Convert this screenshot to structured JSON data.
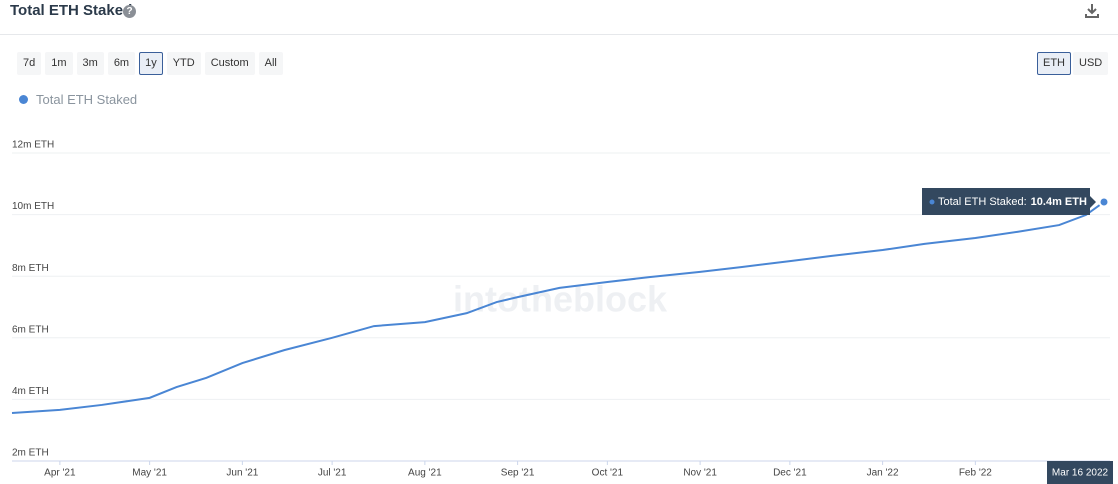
{
  "header": {
    "title": "Total ETH Staked"
  },
  "range_buttons": [
    "7d",
    "1m",
    "3m",
    "6m",
    "1y",
    "YTD",
    "Custom",
    "All"
  ],
  "selected_range": "1y",
  "unit_buttons": [
    "ETH",
    "USD"
  ],
  "selected_unit": "ETH",
  "watermark": "intotheblock",
  "chart_data": {
    "type": "line",
    "series": [
      {
        "name": "Total ETH Staked",
        "color": "#4a86d4",
        "values": [
          3.56,
          3.66,
          3.82,
          4.05,
          4.4,
          4.7,
          5.18,
          5.6,
          6.0,
          6.38,
          6.51,
          6.8,
          7.16,
          7.32,
          7.62,
          7.81,
          7.97,
          8.14,
          8.3,
          8.49,
          8.66,
          8.85,
          9.05,
          9.24,
          9.44,
          9.66,
          9.99,
          10.41
        ]
      }
    ],
    "x": [
      "2021-03-16",
      "2021-04-01",
      "2021-04-15",
      "2021-05-01",
      "2021-05-10",
      "2021-05-20",
      "2021-06-01",
      "2021-06-15",
      "2021-07-01",
      "2021-07-15",
      "2021-08-01",
      "2021-08-15",
      "2021-08-25",
      "2021-09-01",
      "2021-09-15",
      "2021-10-01",
      "2021-10-15",
      "2021-11-01",
      "2021-11-15",
      "2021-12-01",
      "2021-12-15",
      "2022-01-01",
      "2022-01-15",
      "2022-02-01",
      "2022-02-15",
      "2022-03-01",
      "2022-03-10",
      "2022-03-16"
    ],
    "xlim": [
      "2021-03-16",
      "2022-03-16"
    ],
    "xticks": [
      {
        "value": "2021-04-01",
        "label": "Apr '21"
      },
      {
        "value": "2021-05-01",
        "label": "May '21"
      },
      {
        "value": "2021-06-01",
        "label": "Jun '21"
      },
      {
        "value": "2021-07-01",
        "label": "Jul '21"
      },
      {
        "value": "2021-08-01",
        "label": "Aug '21"
      },
      {
        "value": "2021-09-01",
        "label": "Sep '21"
      },
      {
        "value": "2021-10-01",
        "label": "Oct '21"
      },
      {
        "value": "2021-11-01",
        "label": "Nov '21"
      },
      {
        "value": "2021-12-01",
        "label": "Dec '21"
      },
      {
        "value": "2022-01-01",
        "label": "Jan '22"
      },
      {
        "value": "2022-02-01",
        "label": "Feb '22"
      }
    ],
    "ylim": [
      2,
      12
    ],
    "yticks": [
      {
        "value": 2,
        "label": "2m ETH"
      },
      {
        "value": 4,
        "label": "4m ETH"
      },
      {
        "value": 6,
        "label": "6m ETH"
      },
      {
        "value": 8,
        "label": "8m ETH"
      },
      {
        "value": 10,
        "label": "10m ETH"
      },
      {
        "value": 12,
        "label": "12m ETH"
      }
    ],
    "grid": true,
    "tooltip": {
      "label": "Total ETH Staked:",
      "value": 10.4,
      "value_label": "10.4m ETH",
      "date_label": "Mar 16 2022"
    }
  }
}
